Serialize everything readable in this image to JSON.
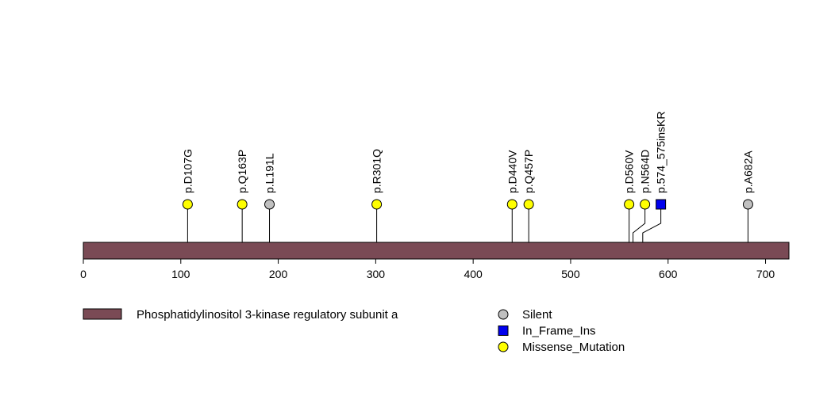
{
  "chart_data": {
    "type": "lollipop",
    "protein_length": 724,
    "xlim": [
      0,
      724
    ],
    "x_ticks": [
      0,
      100,
      200,
      300,
      400,
      500,
      600,
      700
    ],
    "domains": [
      {
        "name": "Phosphatidylinositol 3-kinase regulatory subunit a",
        "start": 0,
        "end": 724,
        "color": "#7a4a55"
      }
    ],
    "mutations": [
      {
        "label": "p.D107G",
        "position": 107,
        "type": "Missense_Mutation"
      },
      {
        "label": "p.Q163P",
        "position": 163,
        "type": "Missense_Mutation"
      },
      {
        "label": "p.L191L",
        "position": 191,
        "type": "Silent"
      },
      {
        "label": "p.R301Q",
        "position": 301,
        "type": "Missense_Mutation"
      },
      {
        "label": "p.D440V",
        "position": 440,
        "type": "Missense_Mutation"
      },
      {
        "label": "p.Q457P",
        "position": 457,
        "type": "Missense_Mutation"
      },
      {
        "label": "p.D560V",
        "position": 560,
        "type": "Missense_Mutation"
      },
      {
        "label": "p.N564D",
        "position": 564,
        "type": "Missense_Mutation"
      },
      {
        "label": "p.574_575insKR",
        "position": 574,
        "type": "In_Frame_Ins"
      },
      {
        "label": "p.A682A",
        "position": 682,
        "type": "Silent"
      }
    ],
    "legend": {
      "domains": [
        "Phosphatidylinositol 3-kinase regulatory subunit a"
      ],
      "mutation_types": [
        {
          "name": "Silent",
          "shape": "circle",
          "color": "#c0c0c0"
        },
        {
          "name": "In_Frame_Ins",
          "shape": "square",
          "color": "#0000ee"
        },
        {
          "name": "Missense_Mutation",
          "shape": "circle",
          "color": "#ffff00"
        }
      ]
    }
  }
}
